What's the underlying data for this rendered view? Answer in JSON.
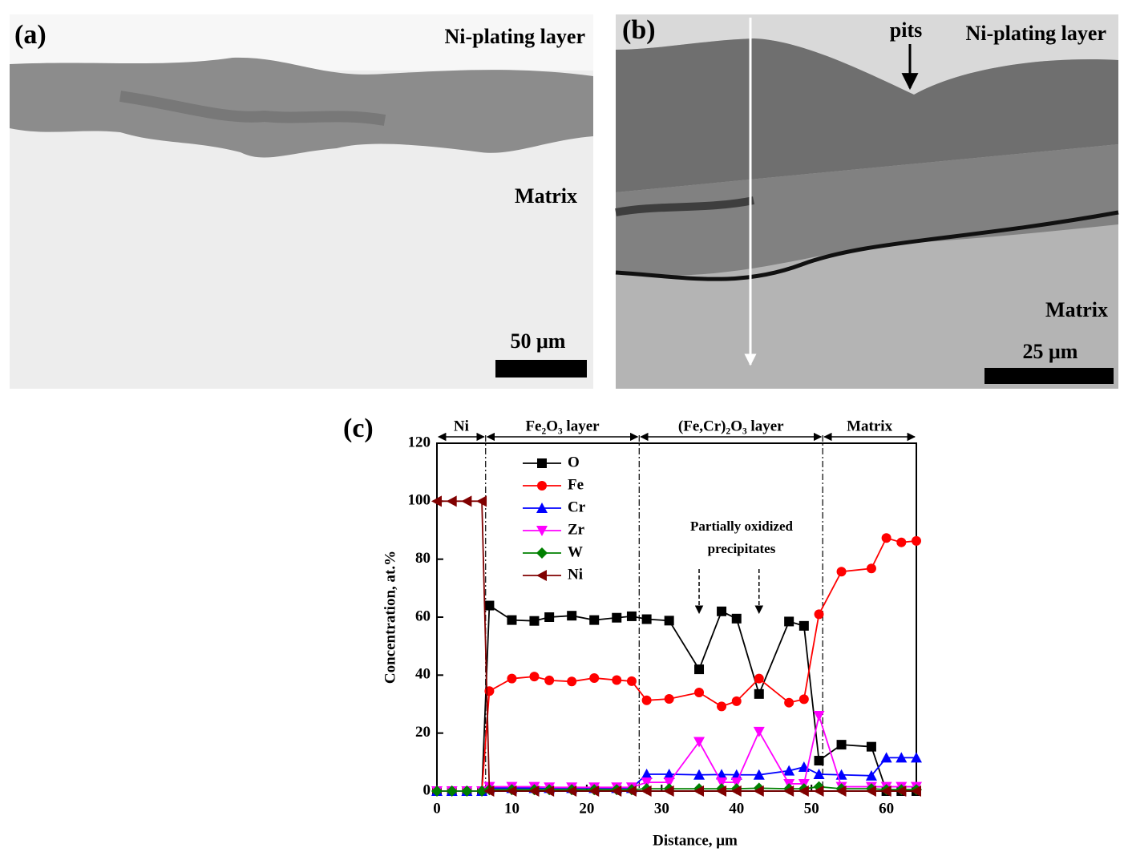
{
  "panels": {
    "a": {
      "tag": "(a)",
      "top": "Ni-plating layer",
      "bottom": "Matrix",
      "scale": "50 μm"
    },
    "b": {
      "tag": "(b)",
      "pits": "pits",
      "top": "Ni-plating layer",
      "bottom": "Matrix",
      "scale": "25 μm"
    }
  },
  "chart_data": {
    "type": "line",
    "tag": "(c)",
    "x_label": "Distance, μm",
    "y_label": "Concentration, at.%",
    "xlim": [
      0,
      64
    ],
    "ylim": [
      0,
      120
    ],
    "xticks": [
      0,
      10,
      20,
      30,
      40,
      50,
      60
    ],
    "yticks": [
      0,
      20,
      40,
      60,
      80,
      100,
      120
    ],
    "x": [
      0,
      2,
      4,
      6,
      7,
      10,
      13,
      15,
      18,
      21,
      24,
      26,
      28,
      31,
      35,
      38,
      40,
      43,
      47,
      49,
      51,
      54,
      58,
      60,
      62,
      64
    ],
    "series": [
      {
        "name": "O",
        "color": "#000000",
        "marker": "square",
        "values": [
          0,
          0,
          0,
          0,
          64,
          59,
          58.7,
          60,
          60.5,
          59,
          59.8,
          60.3,
          59.3,
          58.8,
          42,
          62,
          59.5,
          33.5,
          58.5,
          57,
          10.5,
          16,
          15.3,
          0,
          0,
          0
        ]
      },
      {
        "name": "Fe",
        "color": "#ff0000",
        "marker": "circle",
        "values": [
          0,
          0,
          0,
          0,
          34.5,
          38.8,
          39.5,
          38.2,
          37.8,
          39,
          38.3,
          37.9,
          31.3,
          31.8,
          34,
          29.2,
          31,
          38.8,
          30.5,
          31.7,
          61,
          75.7,
          76.8,
          87.3,
          85.8,
          86.3
        ]
      },
      {
        "name": "Cr",
        "color": "#0000ff",
        "marker": "up",
        "values": [
          0,
          0,
          0,
          0,
          1,
          1,
          1,
          1,
          1,
          1,
          1,
          1,
          5.8,
          5.8,
          5.6,
          5.7,
          5.6,
          5.6,
          7,
          8.3,
          5.8,
          5.6,
          5.3,
          11.5,
          11.5,
          11.5
        ]
      },
      {
        "name": "Zr",
        "color": "#ff00ff",
        "marker": "down",
        "values": [
          0,
          0,
          0,
          0,
          1.5,
          1.5,
          1.5,
          1.3,
          1.3,
          1.3,
          1.3,
          1.3,
          3,
          3,
          17,
          3,
          3,
          20.5,
          2.5,
          2.5,
          26,
          1.5,
          1.5,
          1.5,
          1.5,
          1.5
        ]
      },
      {
        "name": "W",
        "color": "#008000",
        "marker": "diamond",
        "values": [
          0,
          0,
          0,
          0,
          0.5,
          0.5,
          0.5,
          0.5,
          0.5,
          0.5,
          0.5,
          0.5,
          0.8,
          0.8,
          0.8,
          0.8,
          0.8,
          1,
          0.8,
          0.8,
          1.5,
          0.8,
          0.8,
          0.5,
          0.5,
          0.5
        ]
      },
      {
        "name": "Ni",
        "color": "#800000",
        "marker": "left",
        "values": [
          100,
          100,
          100,
          100,
          0,
          0,
          0,
          0,
          0,
          0,
          0,
          0,
          0,
          0,
          0,
          0,
          0,
          0,
          0,
          0,
          0,
          0,
          0,
          0,
          0,
          0
        ]
      }
    ],
    "regions": [
      {
        "label": "Ni",
        "start": 0,
        "end": 6.5
      },
      {
        "label": "Fe₂O₃ layer",
        "start": 6.5,
        "end": 27
      },
      {
        "label": "(Fe,Cr)₂O₃ layer",
        "start": 27,
        "end": 51.5
      },
      {
        "label": "Matrix",
        "start": 51.5,
        "end": 64
      }
    ],
    "annotation": {
      "lines": [
        "Partially oxidized",
        "precipitates"
      ],
      "arrows_x": [
        35,
        43
      ]
    }
  }
}
